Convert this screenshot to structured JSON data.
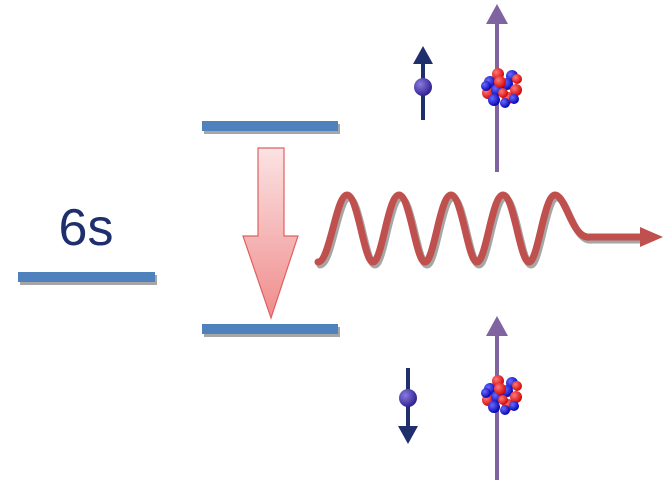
{
  "label": "6s"
}
